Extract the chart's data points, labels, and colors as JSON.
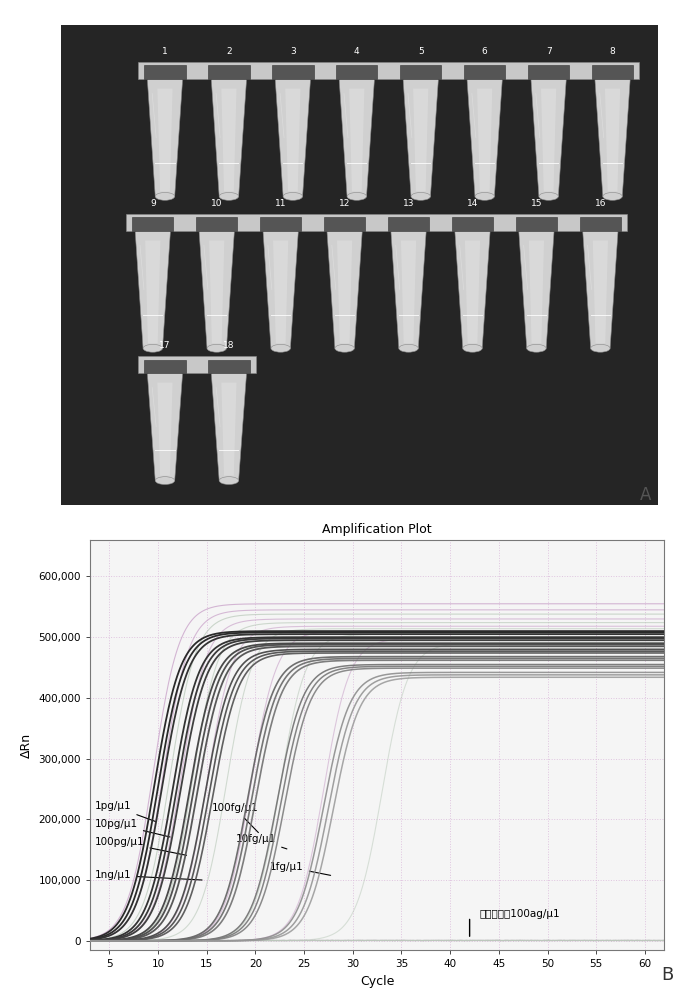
{
  "title_plot": "Amplification Plot",
  "xlabel": "Cycle",
  "ylabel": "ΔRn",
  "xlim": [
    3,
    62
  ],
  "ylim": [
    -15000,
    660000
  ],
  "yticks": [
    0,
    100000,
    200000,
    300000,
    400000,
    500000,
    600000
  ],
  "ytick_labels": [
    "0",
    "100,000",
    "200,000",
    "300,000",
    "400,000",
    "500,000",
    "600,000"
  ],
  "xticks": [
    5,
    10,
    15,
    20,
    25,
    30,
    35,
    40,
    45,
    50,
    55,
    60
  ],
  "panel_a_label": "A",
  "panel_b_label": "B",
  "photo_bg": "#1a1a1a",
  "tube_light_color": "#d8d8d8",
  "tube_dark_color": "#b0b0b0",
  "strip_color": "#c0c0c0",
  "cap_color": "#606060",
  "axis_bg": "#f5f5f5",
  "grid_color": "#ddbfdd"
}
